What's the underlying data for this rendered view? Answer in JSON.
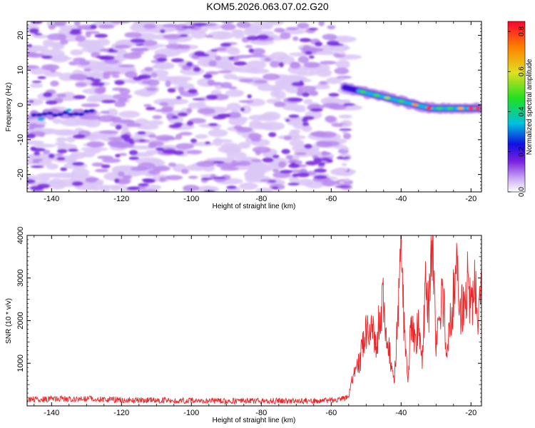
{
  "title": "KOM5.2026.063.07.02.G20",
  "colors": {
    "snr_line": "#e8282a",
    "blob_light": "#dcc8f6",
    "blob_mid": "#b98aee",
    "blob_strong": "#7a2fe0",
    "blob_core": "#5410c8"
  },
  "chart_data": [
    {
      "type": "heatmap",
      "title": "KOM5.2026.063.07.02.G20",
      "xlabel": "Height of straight line (km)",
      "ylabel": "Frequency (Hz)",
      "xlim": [
        -147,
        -17
      ],
      "ylim": [
        -25,
        24
      ],
      "x_ticks": [
        -140,
        -120,
        -100,
        -80,
        -60,
        -40,
        -20
      ],
      "y_ticks": [
        20,
        10,
        0,
        -10,
        -20
      ],
      "grid": false,
      "colorbar": {
        "label": "Normalized spectral amplitude",
        "range": [
          0.0,
          0.85
        ],
        "ticks": [
          0.0,
          0.2,
          0.4,
          0.6,
          0.8
        ],
        "colormap": "rainbow (violet to red)"
      },
      "description_of_signal": {
        "noise_region_x": [
          -147,
          -55
        ],
        "noise_amplitude_range": [
          0.05,
          0.3
        ],
        "early_band": {
          "x": [
            -145,
            -128
          ],
          "freq_hz": -3,
          "amplitude": 0.3
        },
        "main_band": {
          "x": [
            -56,
            -17
          ],
          "freq_start_hz": 5,
          "freq_end_hz": -1,
          "peak_amplitude": 0.85
        }
      }
    },
    {
      "type": "line",
      "xlabel": "Height of straight line (km)",
      "ylabel": "SNR (10 * v/v)",
      "xlim": [
        -147,
        -17
      ],
      "ylim": [
        0,
        4000
      ],
      "x_ticks": [
        -140,
        -120,
        -100,
        -80,
        -60,
        -40,
        -20
      ],
      "y_ticks": [
        1000,
        2000,
        3000,
        4000
      ],
      "series": [
        {
          "name": "SNR",
          "x": [
            -147,
            -140,
            -130,
            -120,
            -110,
            -100,
            -90,
            -80,
            -70,
            -60,
            -55,
            -54,
            -52,
            -50,
            -48,
            -47,
            -46,
            -45,
            -44,
            -43,
            -42,
            -41,
            -40,
            -39,
            -38,
            -37,
            -36,
            -35,
            -34,
            -33,
            -32,
            -31,
            -30,
            -29,
            -28,
            -27,
            -26,
            -25,
            -24,
            -23,
            -22,
            -21,
            -20,
            -19,
            -18,
            -17
          ],
          "y": [
            150,
            160,
            170,
            140,
            130,
            120,
            110,
            120,
            110,
            130,
            200,
            600,
            1000,
            1700,
            1900,
            1400,
            2200,
            2400,
            1500,
            1100,
            600,
            2000,
            4000,
            1500,
            600,
            2200,
            1500,
            1900,
            1000,
            2800,
            2300,
            4000,
            1500,
            2200,
            2600,
            1100,
            1900,
            2600,
            3100,
            2100,
            2600,
            2900,
            2300,
            2700,
            2200,
            2600
          ]
        }
      ]
    }
  ]
}
